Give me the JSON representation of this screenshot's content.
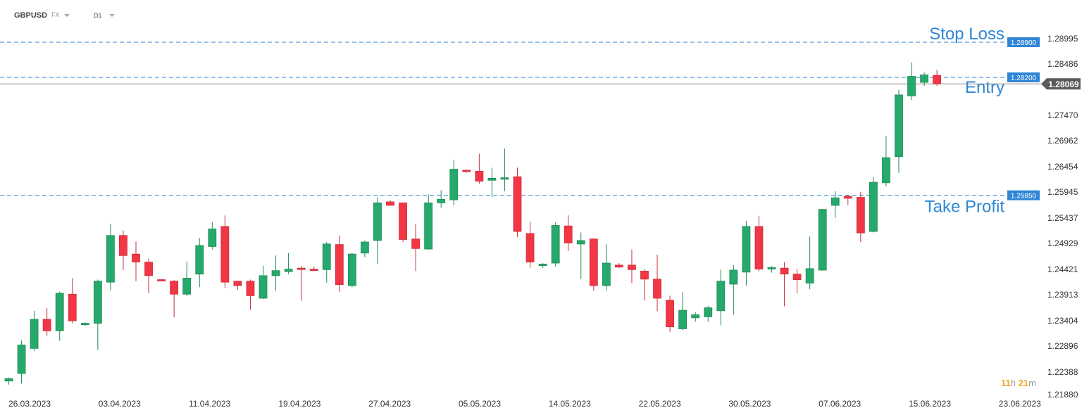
{
  "toolbar": {
    "symbol": "GBPUSD",
    "market": "FX",
    "timeframe": "D1"
  },
  "countdown": {
    "hours": "11",
    "hours_unit": "h",
    "minutes": "21",
    "minutes_unit": "m"
  },
  "colors": {
    "up": "#26a96c",
    "down": "#f23645",
    "level_line": "#2f86d6",
    "level_label": "#2f86d6",
    "price_tag": "#5b5b5b",
    "axis_text": "#333333"
  },
  "chart_data": {
    "type": "candlestick",
    "symbol": "GBPUSD",
    "timeframe": "D1",
    "ylim": [
      1.2188,
      1.29
    ],
    "y_ticks": [
      "1.28995",
      "1.28486",
      "1.27470",
      "1.26962",
      "1.26454",
      "1.25945",
      "1.25437",
      "1.24929",
      "1.24421",
      "1.23913",
      "1.23404",
      "1.22896",
      "1.22388",
      "1.21880"
    ],
    "x_ticks": [
      "26.03.2023",
      "03.04.2023",
      "11.04.2023",
      "19.04.2023",
      "27.04.2023",
      "05.05.2023",
      "14.05.2023",
      "22.05.2023",
      "30.05.2023",
      "07.06.2023",
      "15.06.2023",
      "23.06.2023"
    ],
    "current_price": "1.28069",
    "levels": [
      {
        "label": "Stop Loss",
        "price": "1.28900",
        "value": 1.289
      },
      {
        "label": "Entry",
        "price": "1.28200",
        "value": 1.282
      },
      {
        "label": "Take Profit",
        "price": "1.25850",
        "value": 1.2585
      }
    ],
    "candles": [
      {
        "o": 1.2215,
        "h": 1.2222,
        "l": 1.2208,
        "c": 1.222
      },
      {
        "o": 1.223,
        "h": 1.2296,
        "l": 1.221,
        "c": 1.2287
      },
      {
        "o": 1.228,
        "h": 1.2355,
        "l": 1.2275,
        "c": 1.2338
      },
      {
        "o": 1.2338,
        "h": 1.236,
        "l": 1.2305,
        "c": 1.2315
      },
      {
        "o": 1.2315,
        "h": 1.2393,
        "l": 1.2295,
        "c": 1.239
      },
      {
        "o": 1.2388,
        "h": 1.242,
        "l": 1.233,
        "c": 1.2335
      },
      {
        "o": 1.2328,
        "h": 1.2332,
        "l": 1.2325,
        "c": 1.233
      },
      {
        "o": 1.233,
        "h": 1.2417,
        "l": 1.2277,
        "c": 1.2414
      },
      {
        "o": 1.2412,
        "h": 1.2528,
        "l": 1.2396,
        "c": 1.2505
      },
      {
        "o": 1.2505,
        "h": 1.2515,
        "l": 1.2436,
        "c": 1.2465
      },
      {
        "o": 1.2468,
        "h": 1.2493,
        "l": 1.2414,
        "c": 1.2452
      },
      {
        "o": 1.2452,
        "h": 1.2459,
        "l": 1.239,
        "c": 1.2425
      },
      {
        "o": 1.2417,
        "h": 1.2418,
        "l": 1.2415,
        "c": 1.2415
      },
      {
        "o": 1.2414,
        "h": 1.2416,
        "l": 1.2342,
        "c": 1.2388
      },
      {
        "o": 1.2388,
        "h": 1.2453,
        "l": 1.2385,
        "c": 1.242
      },
      {
        "o": 1.2428,
        "h": 1.25,
        "l": 1.2402,
        "c": 1.2485
      },
      {
        "o": 1.2483,
        "h": 1.2532,
        "l": 1.2477,
        "c": 1.2518
      },
      {
        "o": 1.2523,
        "h": 1.2545,
        "l": 1.24,
        "c": 1.2412
      },
      {
        "o": 1.2414,
        "h": 1.2415,
        "l": 1.2397,
        "c": 1.2405
      },
      {
        "o": 1.2414,
        "h": 1.2417,
        "l": 1.2357,
        "c": 1.2385
      },
      {
        "o": 1.238,
        "h": 1.2445,
        "l": 1.2378,
        "c": 1.2425
      },
      {
        "o": 1.2425,
        "h": 1.2465,
        "l": 1.2395,
        "c": 1.2435
      },
      {
        "o": 1.2433,
        "h": 1.247,
        "l": 1.2428,
        "c": 1.2438
      },
      {
        "o": 1.244,
        "h": 1.2444,
        "l": 1.2375,
        "c": 1.2438
      },
      {
        "o": 1.2438,
        "h": 1.2443,
        "l": 1.2434,
        "c": 1.2437
      },
      {
        "o": 1.2437,
        "h": 1.2492,
        "l": 1.2411,
        "c": 1.2488
      },
      {
        "o": 1.2487,
        "h": 1.2505,
        "l": 1.2392,
        "c": 1.2407
      },
      {
        "o": 1.2405,
        "h": 1.247,
        "l": 1.2402,
        "c": 1.2468
      },
      {
        "o": 1.247,
        "h": 1.2495,
        "l": 1.2462,
        "c": 1.2492
      },
      {
        "o": 1.2495,
        "h": 1.2581,
        "l": 1.2448,
        "c": 1.257
      },
      {
        "o": 1.2572,
        "h": 1.2575,
        "l": 1.2565,
        "c": 1.2565
      },
      {
        "o": 1.257,
        "h": 1.257,
        "l": 1.2492,
        "c": 1.2497
      },
      {
        "o": 1.2498,
        "h": 1.2528,
        "l": 1.2434,
        "c": 1.2479
      },
      {
        "o": 1.2478,
        "h": 1.2587,
        "l": 1.2476,
        "c": 1.257
      },
      {
        "o": 1.257,
        "h": 1.2595,
        "l": 1.256,
        "c": 1.2577
      },
      {
        "o": 1.2576,
        "h": 1.2655,
        "l": 1.2565,
        "c": 1.2637
      },
      {
        "o": 1.2635,
        "h": 1.2636,
        "l": 1.263,
        "c": 1.2632
      },
      {
        "o": 1.2633,
        "h": 1.2668,
        "l": 1.2608,
        "c": 1.2613
      },
      {
        "o": 1.2615,
        "h": 1.264,
        "l": 1.2581,
        "c": 1.2619
      },
      {
        "o": 1.2617,
        "h": 1.2678,
        "l": 1.2593,
        "c": 1.262
      },
      {
        "o": 1.2622,
        "h": 1.264,
        "l": 1.2502,
        "c": 1.2513
      },
      {
        "o": 1.2509,
        "h": 1.2532,
        "l": 1.2441,
        "c": 1.2452
      },
      {
        "o": 1.2445,
        "h": 1.245,
        "l": 1.244,
        "c": 1.2448
      },
      {
        "o": 1.245,
        "h": 1.2531,
        "l": 1.2443,
        "c": 1.2525
      },
      {
        "o": 1.2524,
        "h": 1.2545,
        "l": 1.2474,
        "c": 1.249
      },
      {
        "o": 1.2488,
        "h": 1.2511,
        "l": 1.2418,
        "c": 1.2495
      },
      {
        "o": 1.2498,
        "h": 1.2499,
        "l": 1.2395,
        "c": 1.2405
      },
      {
        "o": 1.2405,
        "h": 1.2488,
        "l": 1.2395,
        "c": 1.245
      },
      {
        "o": 1.2446,
        "h": 1.245,
        "l": 1.244,
        "c": 1.2442
      },
      {
        "o": 1.2446,
        "h": 1.2477,
        "l": 1.241,
        "c": 1.2437
      },
      {
        "o": 1.2434,
        "h": 1.2438,
        "l": 1.2375,
        "c": 1.2418
      },
      {
        "o": 1.2418,
        "h": 1.2467,
        "l": 1.2354,
        "c": 1.238
      },
      {
        "o": 1.2376,
        "h": 1.2385,
        "l": 1.2313,
        "c": 1.2323
      },
      {
        "o": 1.2319,
        "h": 1.2392,
        "l": 1.2316,
        "c": 1.2356
      },
      {
        "o": 1.2341,
        "h": 1.2352,
        "l": 1.2333,
        "c": 1.2347
      },
      {
        "o": 1.2343,
        "h": 1.2365,
        "l": 1.2333,
        "c": 1.2361
      },
      {
        "o": 1.2355,
        "h": 1.2437,
        "l": 1.2326,
        "c": 1.2414
      },
      {
        "o": 1.2408,
        "h": 1.2446,
        "l": 1.2347,
        "c": 1.2436
      },
      {
        "o": 1.2432,
        "h": 1.2534,
        "l": 1.2405,
        "c": 1.2523
      },
      {
        "o": 1.2523,
        "h": 1.2544,
        "l": 1.2433,
        "c": 1.2438
      },
      {
        "o": 1.2438,
        "h": 1.2444,
        "l": 1.2431,
        "c": 1.2441
      },
      {
        "o": 1.244,
        "h": 1.2452,
        "l": 1.2364,
        "c": 1.2428
      },
      {
        "o": 1.2428,
        "h": 1.2439,
        "l": 1.239,
        "c": 1.2417
      },
      {
        "o": 1.241,
        "h": 1.2503,
        "l": 1.2398,
        "c": 1.2439
      },
      {
        "o": 1.2436,
        "h": 1.2558,
        "l": 1.2435,
        "c": 1.2557
      },
      {
        "o": 1.2565,
        "h": 1.2593,
        "l": 1.254,
        "c": 1.258
      },
      {
        "o": 1.2583,
        "h": 1.2586,
        "l": 1.2566,
        "c": 1.2579
      },
      {
        "o": 1.2581,
        "h": 1.2592,
        "l": 1.2492,
        "c": 1.251
      },
      {
        "o": 1.2513,
        "h": 1.2621,
        "l": 1.2511,
        "c": 1.2611
      },
      {
        "o": 1.261,
        "h": 1.2703,
        "l": 1.2603,
        "c": 1.266
      },
      {
        "o": 1.2662,
        "h": 1.2795,
        "l": 1.263,
        "c": 1.2785
      },
      {
        "o": 1.2783,
        "h": 1.285,
        "l": 1.2775,
        "c": 1.2822
      },
      {
        "o": 1.281,
        "h": 1.283,
        "l": 1.2803,
        "c": 1.2825
      },
      {
        "o": 1.2824,
        "h": 1.2835,
        "l": 1.2803,
        "c": 1.2807
      }
    ]
  }
}
